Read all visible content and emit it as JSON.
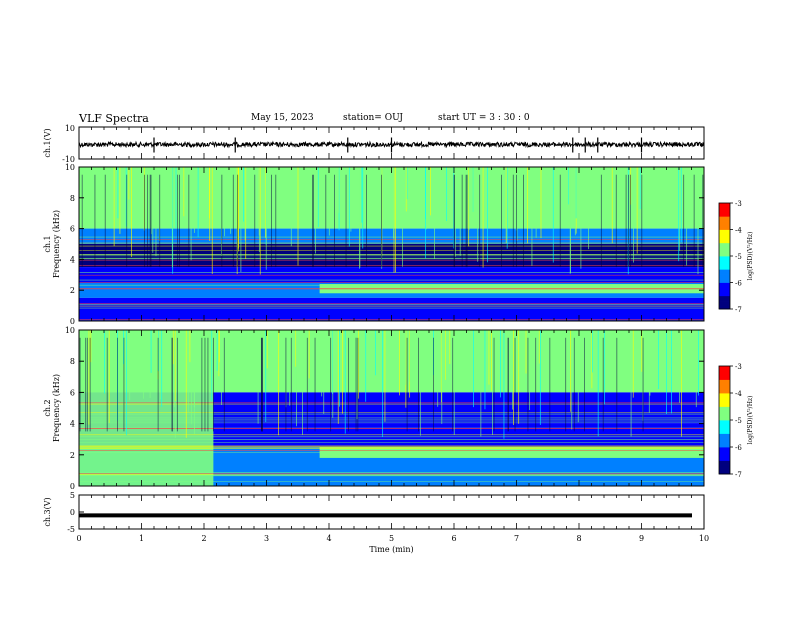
{
  "header": {
    "title": "VLF Spectra",
    "date": "May 15, 2023",
    "station": "station= OUJ",
    "start": "start  UT  =   3  : 30 : 0"
  },
  "chart_data": [
    {
      "type": "line",
      "name": "ch1-waveform",
      "ylabel": "ch.1(V)",
      "ylim": [
        -10,
        10
      ],
      "yticks": [
        "10",
        "-10"
      ],
      "x": [
        0,
        10
      ],
      "description_values": {
        "baseline_V": 0,
        "noise_amplitude_V": 1,
        "spikes_min": [
          1.2,
          2.5,
          4.3,
          5.0,
          7.9,
          8.1,
          8.3,
          9.0
        ]
      }
    },
    {
      "type": "heatmap",
      "name": "ch1-spectrogram",
      "ylabel": "ch.1\nFrequency (kHz)",
      "ylabel_l1": "ch.1",
      "ylabel_l2": "Frequency (kHz)",
      "ylim": [
        0,
        10
      ],
      "yticks": [
        "0",
        "2",
        "4",
        "6",
        "8",
        "10"
      ],
      "xlim": [
        0,
        10
      ],
      "colorbar": {
        "label": "log(PSD)(V²/Hz)",
        "range": [
          -7,
          -3
        ],
        "ticks": [
          "-3",
          "-4",
          "-5",
          "-6",
          "-7"
        ]
      },
      "bands": [
        {
          "f_low": 6.0,
          "f_high": 10.0,
          "level": -5.0
        },
        {
          "f_low": 5.0,
          "f_high": 6.0,
          "level": -5.8
        },
        {
          "f_low": 3.5,
          "f_high": 5.0,
          "level": -6.6
        },
        {
          "f_low": 2.5,
          "f_high": 3.5,
          "level": -6.3
        },
        {
          "f_low": 1.5,
          "f_high": 2.5,
          "level": -5.9
        },
        {
          "f_low": 0.0,
          "f_high": 1.5,
          "level": -6.4
        }
      ],
      "enhanced_band": {
        "t_start_min": 3.85,
        "f_low": 1.8,
        "f_high": 2.4,
        "level": -5.0
      }
    },
    {
      "type": "heatmap",
      "name": "ch2-spectrogram",
      "ylabel_l1": "ch.2",
      "ylabel_l2": "Frequency (kHz)",
      "ylim": [
        0,
        10
      ],
      "yticks": [
        "0",
        "2",
        "4",
        "6",
        "8",
        "10"
      ],
      "xlim": [
        0,
        10
      ],
      "colorbar": {
        "label": "log(PSD)(V²/Hz)",
        "range": [
          -7,
          -3
        ],
        "ticks": [
          "-3",
          "-4",
          "-5",
          "-6",
          "-7"
        ]
      },
      "bands": [
        {
          "f_low": 6.0,
          "f_high": 10.0,
          "level": -5.0
        },
        {
          "f_low": 4.0,
          "f_high": 6.0,
          "level": -6.2
        },
        {
          "f_low": 2.5,
          "f_high": 4.0,
          "level": -6.5
        },
        {
          "f_low": 0.0,
          "f_high": 2.5,
          "level": -6.0
        }
      ],
      "early_active": {
        "t_end_min": 2.15,
        "f_low": 0.0,
        "f_high": 10.0,
        "level": -4.6
      },
      "enhanced_band": {
        "t_start_min": 3.85,
        "f_low": 1.8,
        "f_high": 2.5,
        "level": -5.0
      }
    },
    {
      "type": "line",
      "name": "ch3-trace",
      "ylabel": "ch.3(V)",
      "ylim": [
        -5,
        5
      ],
      "yticks": [
        "5",
        "0",
        "-5"
      ],
      "values_V": {
        "constant": -1.0
      }
    }
  ],
  "xaxis": {
    "label": "Time  (min)",
    "ticks": [
      "0",
      "1",
      "2",
      "3",
      "4",
      "5",
      "6",
      "7",
      "8",
      "9",
      "10"
    ],
    "xlim": [
      0,
      10
    ]
  },
  "colors": {
    "colormap": [
      "#00007f",
      "#0000ff",
      "#0080ff",
      "#00ffff",
      "#80ff80",
      "#ffff00",
      "#ff8000",
      "#ff0000",
      "#ffffff"
    ]
  }
}
